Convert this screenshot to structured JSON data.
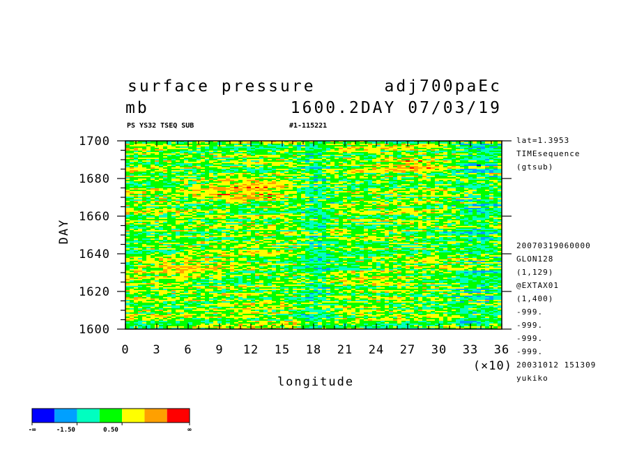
{
  "title": {
    "line1_left": "surface pressure",
    "line1_right": "adj700paEc",
    "line2_left": "mb",
    "line2_right": "1600.2DAY 07/03/19",
    "sub_left": "PS YS32 TSEQ SUB",
    "sub_right": "#1-115221"
  },
  "side_info": {
    "top": [
      "lat=1.3953",
      "TIMEsequence",
      "(gtsub)"
    ],
    "bottom": [
      "20070319060000",
      "GLON128",
      "(1,129)",
      "@EXTAX01",
      "(1,400)",
      "-999.",
      "-999.",
      "-999.",
      "-999.",
      "20031012 151309",
      "yukiko"
    ]
  },
  "chart_data": {
    "type": "heatmap",
    "xlabel": "longitude",
    "x_unit_label": "(×10)",
    "ylabel": "DAY",
    "xlim": [
      0,
      36
    ],
    "ylim": [
      1600,
      1700
    ],
    "x_ticks": [
      "0",
      "3",
      "6",
      "9",
      "12",
      "15",
      "18",
      "21",
      "24",
      "27",
      "30",
      "33",
      "36"
    ],
    "y_ticks": [
      "1600",
      "1620",
      "1640",
      "1660",
      "1680",
      "1700"
    ],
    "colorbar": {
      "colors": [
        "#0000ff",
        "#00a0ff",
        "#00ffc0",
        "#00ff00",
        "#ffff00",
        "#ffa000",
        "#ff0000"
      ],
      "labels": [
        "-∞",
        "-1.50",
        "0.50",
        "∞"
      ]
    }
  }
}
